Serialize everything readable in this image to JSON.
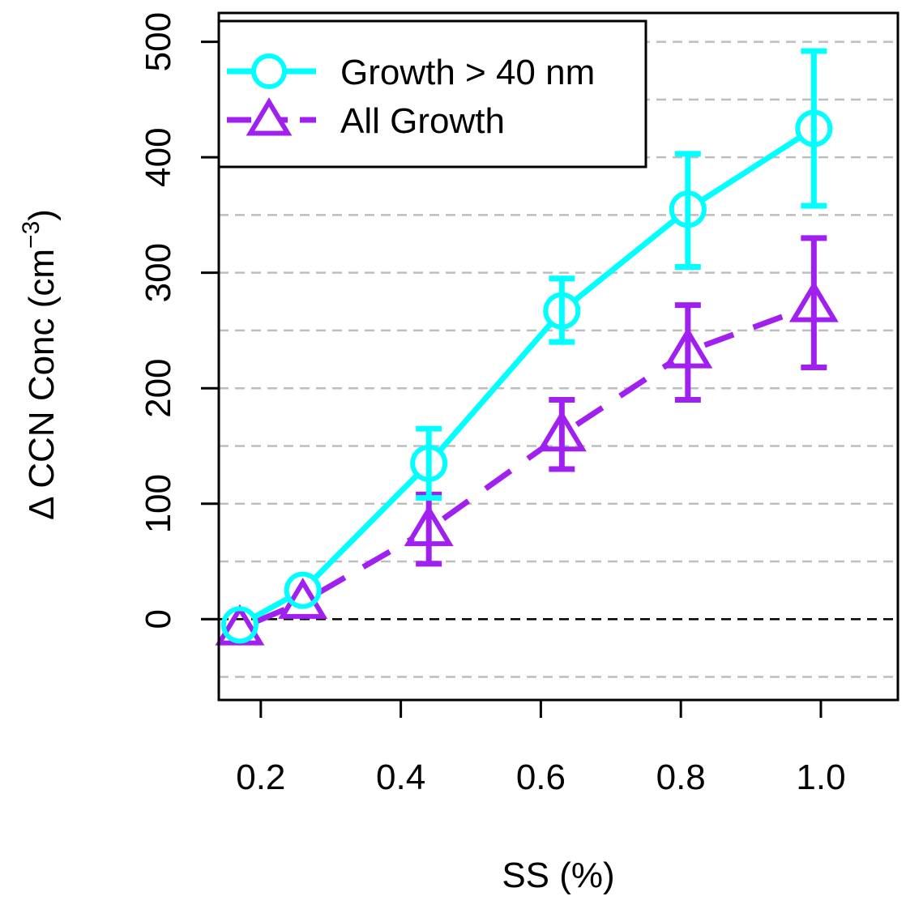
{
  "chart_data": {
    "type": "line",
    "xlabel": "SS (%)",
    "ylabel_parts": {
      "prefix": "Δ CCN Conc (cm",
      "superscript": "−3",
      "suffix": ")"
    },
    "xlim": [
      0.14,
      1.11
    ],
    "ylim": [
      -70,
      525
    ],
    "x_ticks": [
      0.2,
      0.4,
      0.6,
      0.8,
      1.0
    ],
    "x_tick_labels": [
      "0.2",
      "0.4",
      "0.6",
      "0.8",
      "1.0"
    ],
    "y_ticks": [
      0,
      100,
      200,
      300,
      400,
      500
    ],
    "y_tick_labels": [
      "0",
      "100",
      "200",
      "300",
      "400",
      "500"
    ],
    "grid": {
      "y_dashed": [
        -50,
        50,
        100,
        150,
        200,
        250,
        300,
        350,
        400,
        450,
        500
      ],
      "zero_line": 0
    },
    "legend": {
      "position": "top-left"
    },
    "series": [
      {
        "name": "Growth > 40 nm",
        "color": "#00FFFF",
        "line_style": "solid",
        "marker": "circle",
        "x": [
          0.17,
          0.26,
          0.44,
          0.63,
          0.81,
          0.99
        ],
        "y": [
          -5,
          25,
          135,
          267,
          355,
          425
        ],
        "err_low": [
          null,
          null,
          105,
          240,
          305,
          358
        ],
        "err_high": [
          null,
          null,
          165,
          295,
          403,
          492
        ]
      },
      {
        "name": "All Growth",
        "color": "#A020F0",
        "line_style": "dashed",
        "marker": "triangle",
        "x": [
          0.17,
          0.26,
          0.44,
          0.63,
          0.81,
          0.99
        ],
        "y": [
          -8,
          15,
          78,
          160,
          232,
          272
        ],
        "err_low": [
          null,
          null,
          48,
          130,
          190,
          218
        ],
        "err_high": [
          null,
          null,
          108,
          190,
          272,
          330
        ]
      }
    ]
  }
}
